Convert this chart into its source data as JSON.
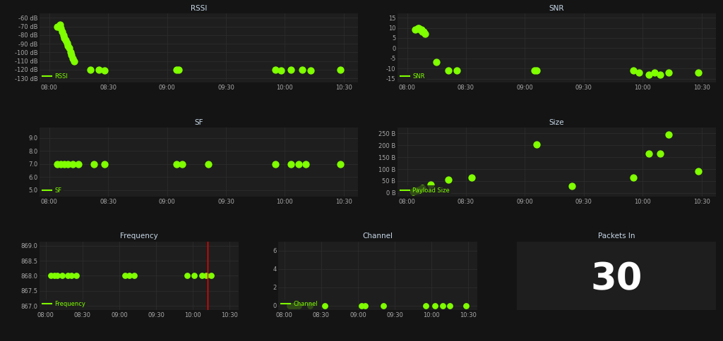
{
  "bg_color": "#141414",
  "plot_bg": "#1e1e1e",
  "grid_color": "#2e2e2e",
  "text_color": "#aaaaaa",
  "dot_color": "#7fff00",
  "title_color": "#c8d8e8",
  "legend_color": "#7fff00",
  "rssi": {
    "title": "RSSI",
    "ylabel_ticks": [
      "-60 dB",
      "-70 dB",
      "-80 dB",
      "-90 dB",
      "-100 dB",
      "-110 dB",
      "-120 dB",
      "-130 dB"
    ],
    "yticks": [
      -60,
      -70,
      -80,
      -90,
      -100,
      -110,
      -120,
      -130
    ],
    "ylim": [
      -135,
      -55
    ],
    "times": [
      8.07,
      8.09,
      8.1,
      8.11,
      8.12,
      8.13,
      8.14,
      8.15,
      8.16,
      8.17,
      8.18,
      8.19,
      8.2,
      8.21,
      8.35,
      8.42,
      8.47,
      9.08,
      9.1,
      9.92,
      9.97,
      10.05,
      10.15,
      10.22,
      10.47
    ],
    "values": [
      -70,
      -68,
      -72,
      -76,
      -80,
      -83,
      -86,
      -89,
      -92,
      -95,
      -100,
      -103,
      -107,
      -110,
      -120,
      -120,
      -121,
      -120,
      -120,
      -120,
      -121,
      -120,
      -120,
      -121,
      -120
    ],
    "legend": "RSSI"
  },
  "snr": {
    "title": "SNR",
    "yticks": [
      -15,
      -10,
      -5,
      0,
      5,
      10,
      15
    ],
    "ylim": [
      -17,
      17
    ],
    "times": [
      8.07,
      8.09,
      8.1,
      8.11,
      8.12,
      8.13,
      8.14,
      8.15,
      8.25,
      8.35,
      8.42,
      9.08,
      9.1,
      9.92,
      9.97,
      10.05,
      10.1,
      10.15,
      10.22,
      10.47
    ],
    "values": [
      9,
      10,
      10,
      9,
      9,
      8,
      8,
      7,
      -7,
      -11,
      -11,
      -11,
      -11,
      -11,
      -12,
      -13,
      -12,
      -13,
      -12,
      -12
    ],
    "legend": "SNR"
  },
  "sf": {
    "title": "SF",
    "yticks": [
      5.0,
      6.0,
      7.0,
      8.0,
      9.0
    ],
    "ylim": [
      4.5,
      9.8
    ],
    "times": [
      8.07,
      8.1,
      8.13,
      8.16,
      8.2,
      8.25,
      8.38,
      8.47,
      9.08,
      9.13,
      9.35,
      9.92,
      10.05,
      10.12,
      10.18,
      10.47
    ],
    "values": [
      7,
      7,
      7,
      7,
      7,
      7,
      7,
      7,
      7,
      7,
      7,
      7,
      7,
      7,
      7,
      7
    ],
    "legend": "SF"
  },
  "size": {
    "title": "Size",
    "yticks": [
      0,
      50,
      100,
      150,
      200,
      250
    ],
    "ylabel_ticks": [
      "0 B",
      "50 B",
      "100 B",
      "150 B",
      "200 B",
      "250 B"
    ],
    "ylim": [
      -15,
      275
    ],
    "times": [
      8.05,
      8.07,
      8.09,
      8.11,
      8.13,
      8.2,
      8.35,
      8.55,
      9.1,
      9.4,
      9.92,
      10.05,
      10.15,
      10.22,
      10.47
    ],
    "values": [
      5,
      8,
      10,
      15,
      20,
      35,
      55,
      65,
      205,
      30,
      65,
      165,
      165,
      245,
      90
    ],
    "legend": "Payload Size"
  },
  "frequency": {
    "title": "Frequency",
    "yticks": [
      867.0,
      867.5,
      868.0,
      868.5,
      869.0
    ],
    "ylim": [
      866.85,
      869.15
    ],
    "times": [
      8.07,
      8.12,
      8.16,
      8.22,
      8.3,
      8.35,
      8.42,
      9.08,
      9.13,
      9.2,
      9.92,
      10.02,
      10.12,
      10.18,
      10.25
    ],
    "values": [
      868.0,
      868.0,
      868.0,
      868.0,
      868.0,
      868.0,
      868.0,
      868.0,
      868.0,
      868.0,
      868.0,
      868.0,
      868.0,
      868.0,
      868.0
    ],
    "vline": 10.2,
    "legend": "Frequency"
  },
  "channel": {
    "title": "Channel",
    "yticks": [
      0,
      2,
      4,
      6
    ],
    "ylim": [
      -0.5,
      7
    ],
    "times": [
      8.07,
      8.1,
      8.13,
      8.16,
      8.2,
      8.35,
      8.55,
      9.05,
      9.1,
      9.35,
      9.92,
      10.05,
      10.15,
      10.25,
      10.47
    ],
    "values": [
      0,
      0,
      0,
      0,
      0,
      0,
      0,
      0,
      0,
      0,
      0,
      0,
      0,
      0,
      0
    ],
    "legend": "Channel"
  },
  "packets_in": {
    "title": "Packets In",
    "value": "30"
  },
  "xmin": 7.92,
  "xmax": 10.62,
  "xticks": [
    8.0,
    8.5,
    9.0,
    9.5,
    10.0,
    10.5
  ],
  "xticklabels": [
    "08:00",
    "08:30",
    "09:00",
    "09:30",
    "10:00",
    "10:30"
  ]
}
